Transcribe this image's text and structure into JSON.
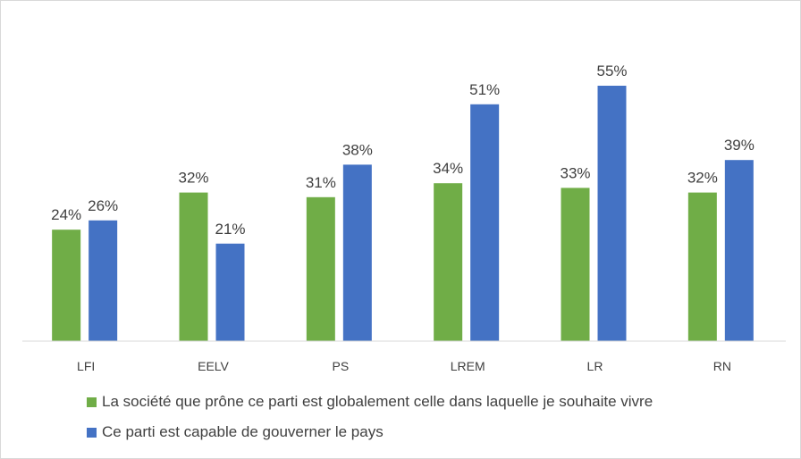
{
  "chart_data": {
    "type": "bar",
    "title": "",
    "xlabel": "",
    "ylabel": "",
    "ylim": [
      0,
      60
    ],
    "grid": false,
    "legend_position": "bottom",
    "categories": [
      "LFI",
      "EELV",
      "PS",
      "LREM",
      "LR",
      "RN"
    ],
    "series": [
      {
        "name": "La société que prône ce parti est globalement celle dans laquelle je souhaite vivre",
        "color": "#70ad47",
        "values": [
          24,
          32,
          31,
          34,
          33,
          32
        ],
        "labels": [
          "24%",
          "32%",
          "31%",
          "34%",
          "33%",
          "32%"
        ]
      },
      {
        "name": "Ce parti est capable de gouverner le pays",
        "color": "#4472c4",
        "values": [
          26,
          21,
          38,
          51,
          55,
          39
        ],
        "labels": [
          "26%",
          "21%",
          "38%",
          "51%",
          "55%",
          "39%"
        ]
      }
    ]
  }
}
